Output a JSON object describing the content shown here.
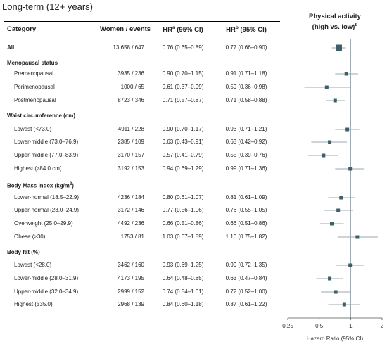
{
  "title": "Long-term (12+ years)",
  "header": {
    "category": "Category",
    "women_events": "Women / events",
    "hr_a": "HR",
    "hr_a_sup": "a",
    "hr_a_suffix": " (95% CI)",
    "hr_b": "HR",
    "hr_b_sup": "b",
    "hr_b_suffix": " (95% CI)",
    "pa_line1": "Physical activity",
    "pa_line2": "(high vs. low)",
    "pa_sup": "b"
  },
  "rows": [
    {
      "label": "All",
      "kind": "all",
      "women_events": "13,658 / 647",
      "hr_a": "0.76 (0.65–0.89)",
      "hr_b": "0.77 (0.66–0.90)"
    },
    {
      "label": "Menopausal status",
      "kind": "section"
    },
    {
      "label": "Premenopausal",
      "kind": "item",
      "women_events": "3935 / 236",
      "hr_a": "0.90 (0.70–1.15)",
      "hr_b": "0.91 (0.71–1.18)"
    },
    {
      "label": "Perimenopausal",
      "kind": "item",
      "women_events": "1000 / 65",
      "hr_a": "0.61 (0.37–0.99)",
      "hr_b": "0.59 (0.36–0.98)"
    },
    {
      "label": "Postmenopausal",
      "kind": "item",
      "women_events": "8723 / 346",
      "hr_a": "0.71 (0.57–0.87)",
      "hr_b": "0.71 (0.58–0.88)"
    },
    {
      "label": "Waist circumference (cm)",
      "kind": "section"
    },
    {
      "label": "Lowest (<73.0)",
      "kind": "item",
      "women_events": "4911 / 228",
      "hr_a": "0.90 (0.70–1.17)",
      "hr_b": "0.93 (0.71–1.21)"
    },
    {
      "label": "Lower-middle (73.0–76.9)",
      "kind": "item",
      "women_events": "2385 / 109",
      "hr_a": "0.63 (0.43–0.91)",
      "hr_b": "0.63 (0.42–0.92)"
    },
    {
      "label": "Upper-middle (77.0–83.9)",
      "kind": "item",
      "women_events": "3170 / 157",
      "hr_a": "0.57 (0.41–0.79)",
      "hr_b": "0.55 (0.39–0.76)"
    },
    {
      "label": "Highest (≥84.0 cm)",
      "kind": "item",
      "women_events": "3192 / 153",
      "hr_a": "0.94 (0.69–1.29)",
      "hr_b": "0.99 (0.71–1.36)"
    },
    {
      "label": "Body Mass Index (kg/m",
      "label_sup": "2",
      "label_suffix": ")",
      "kind": "section"
    },
    {
      "label": "Lower-normal (18.5–22.9)",
      "kind": "item",
      "women_events": "4236 / 184",
      "hr_a": "0.80 (0.61–1.07)",
      "hr_b": "0.81 (0.61–1.09)"
    },
    {
      "label": "Upper-normal (23.0–24.9)",
      "kind": "item",
      "women_events": "3172 / 146",
      "hr_a": "0.77 (0.56–1.06)",
      "hr_b": "0.76 (0.55–1.05)"
    },
    {
      "label": "Overweight (25.0–29.9)",
      "kind": "item",
      "women_events": "4492 / 236",
      "hr_a": "0.66 (0.51–0.86)",
      "hr_b": "0.66 (0.51–0.86)"
    },
    {
      "label": "Obese (≥30)",
      "kind": "item",
      "women_events": "1753 / 81",
      "hr_a": "1.03 (0.67–1.59)",
      "hr_b": "1.16 (0.75–1.82)"
    },
    {
      "label": "Body fat (%)",
      "kind": "section"
    },
    {
      "label": "Lowest (<28.0)",
      "kind": "item",
      "women_events": "3462 / 160",
      "hr_a": "0.93 (0.69–1.25)",
      "hr_b": "0.99 (0.72–1.35)"
    },
    {
      "label": "Lower-middle (28.0–31.9)",
      "kind": "item",
      "women_events": "4173 / 195",
      "hr_a": "0.64 (0.48–0.85)",
      "hr_b": "0.63 (0.47–0.84)"
    },
    {
      "label": "Upper-middle (32.0–34.9)",
      "kind": "item",
      "women_events": "2999 / 152",
      "hr_a": "0.74 (0.54–1.01)",
      "hr_b": "0.72 (0.52–1.00)"
    },
    {
      "label": "Highest (≥35.0)",
      "kind": "item",
      "women_events": "2968 / 139",
      "hr_a": "0.84 (0.60–1.18)",
      "hr_b": "0.87 (0.61–1.22)"
    }
  ],
  "colors": {
    "marker": "#3d5f68",
    "ci_line": "#9aa9b2",
    "ref_line": "#8c9aa4",
    "axis": "#555555",
    "rule": "#000000"
  },
  "chart_data": {
    "type": "scatter",
    "subtype": "forest-plot",
    "title": "",
    "xlabel": "Hazard Ratio (95% CI)",
    "ylabel": "",
    "x_scale": "log",
    "xlim": [
      0.25,
      2
    ],
    "x_ticks": [
      0.25,
      0.5,
      1,
      2
    ],
    "x_tick_labels": [
      "0.25",
      "0.5",
      "1",
      "2"
    ],
    "reference_line": 1,
    "grid": false,
    "categories": [
      "All",
      "Premenopausal",
      "Perimenopausal",
      "Postmenopausal",
      "Lowest (<73.0)",
      "Lower-middle (73.0–76.9)",
      "Upper-middle (77.0–83.9)",
      "Highest (≥84.0 cm)",
      "Lower-normal (18.5–22.9)",
      "Upper-normal (23.0–24.9)",
      "Overweight (25.0–29.9)",
      "Obese (≥30)",
      "Lowest (<28.0)",
      "Lower-middle (28.0–31.9)",
      "Upper-middle (32.0–34.9)",
      "Highest (≥35.0)"
    ],
    "points": [
      {
        "row": 0,
        "hr": 0.77,
        "lo": 0.66,
        "hi": 0.9
      },
      {
        "row": 2,
        "hr": 0.91,
        "lo": 0.71,
        "hi": 1.18
      },
      {
        "row": 3,
        "hr": 0.59,
        "lo": 0.36,
        "hi": 0.98
      },
      {
        "row": 4,
        "hr": 0.71,
        "lo": 0.58,
        "hi": 0.88
      },
      {
        "row": 6,
        "hr": 0.93,
        "lo": 0.71,
        "hi": 1.21
      },
      {
        "row": 7,
        "hr": 0.63,
        "lo": 0.42,
        "hi": 0.92
      },
      {
        "row": 8,
        "hr": 0.55,
        "lo": 0.39,
        "hi": 0.76
      },
      {
        "row": 9,
        "hr": 0.99,
        "lo": 0.71,
        "hi": 1.36
      },
      {
        "row": 11,
        "hr": 0.81,
        "lo": 0.61,
        "hi": 1.09
      },
      {
        "row": 12,
        "hr": 0.76,
        "lo": 0.55,
        "hi": 1.05
      },
      {
        "row": 13,
        "hr": 0.66,
        "lo": 0.51,
        "hi": 0.86
      },
      {
        "row": 14,
        "hr": 1.16,
        "lo": 0.75,
        "hi": 1.82
      },
      {
        "row": 16,
        "hr": 0.99,
        "lo": 0.72,
        "hi": 1.35
      },
      {
        "row": 17,
        "hr": 0.63,
        "lo": 0.47,
        "hi": 0.84
      },
      {
        "row": 18,
        "hr": 0.72,
        "lo": 0.52,
        "hi": 1.0
      },
      {
        "row": 19,
        "hr": 0.87,
        "lo": 0.61,
        "hi": 1.22
      }
    ]
  }
}
